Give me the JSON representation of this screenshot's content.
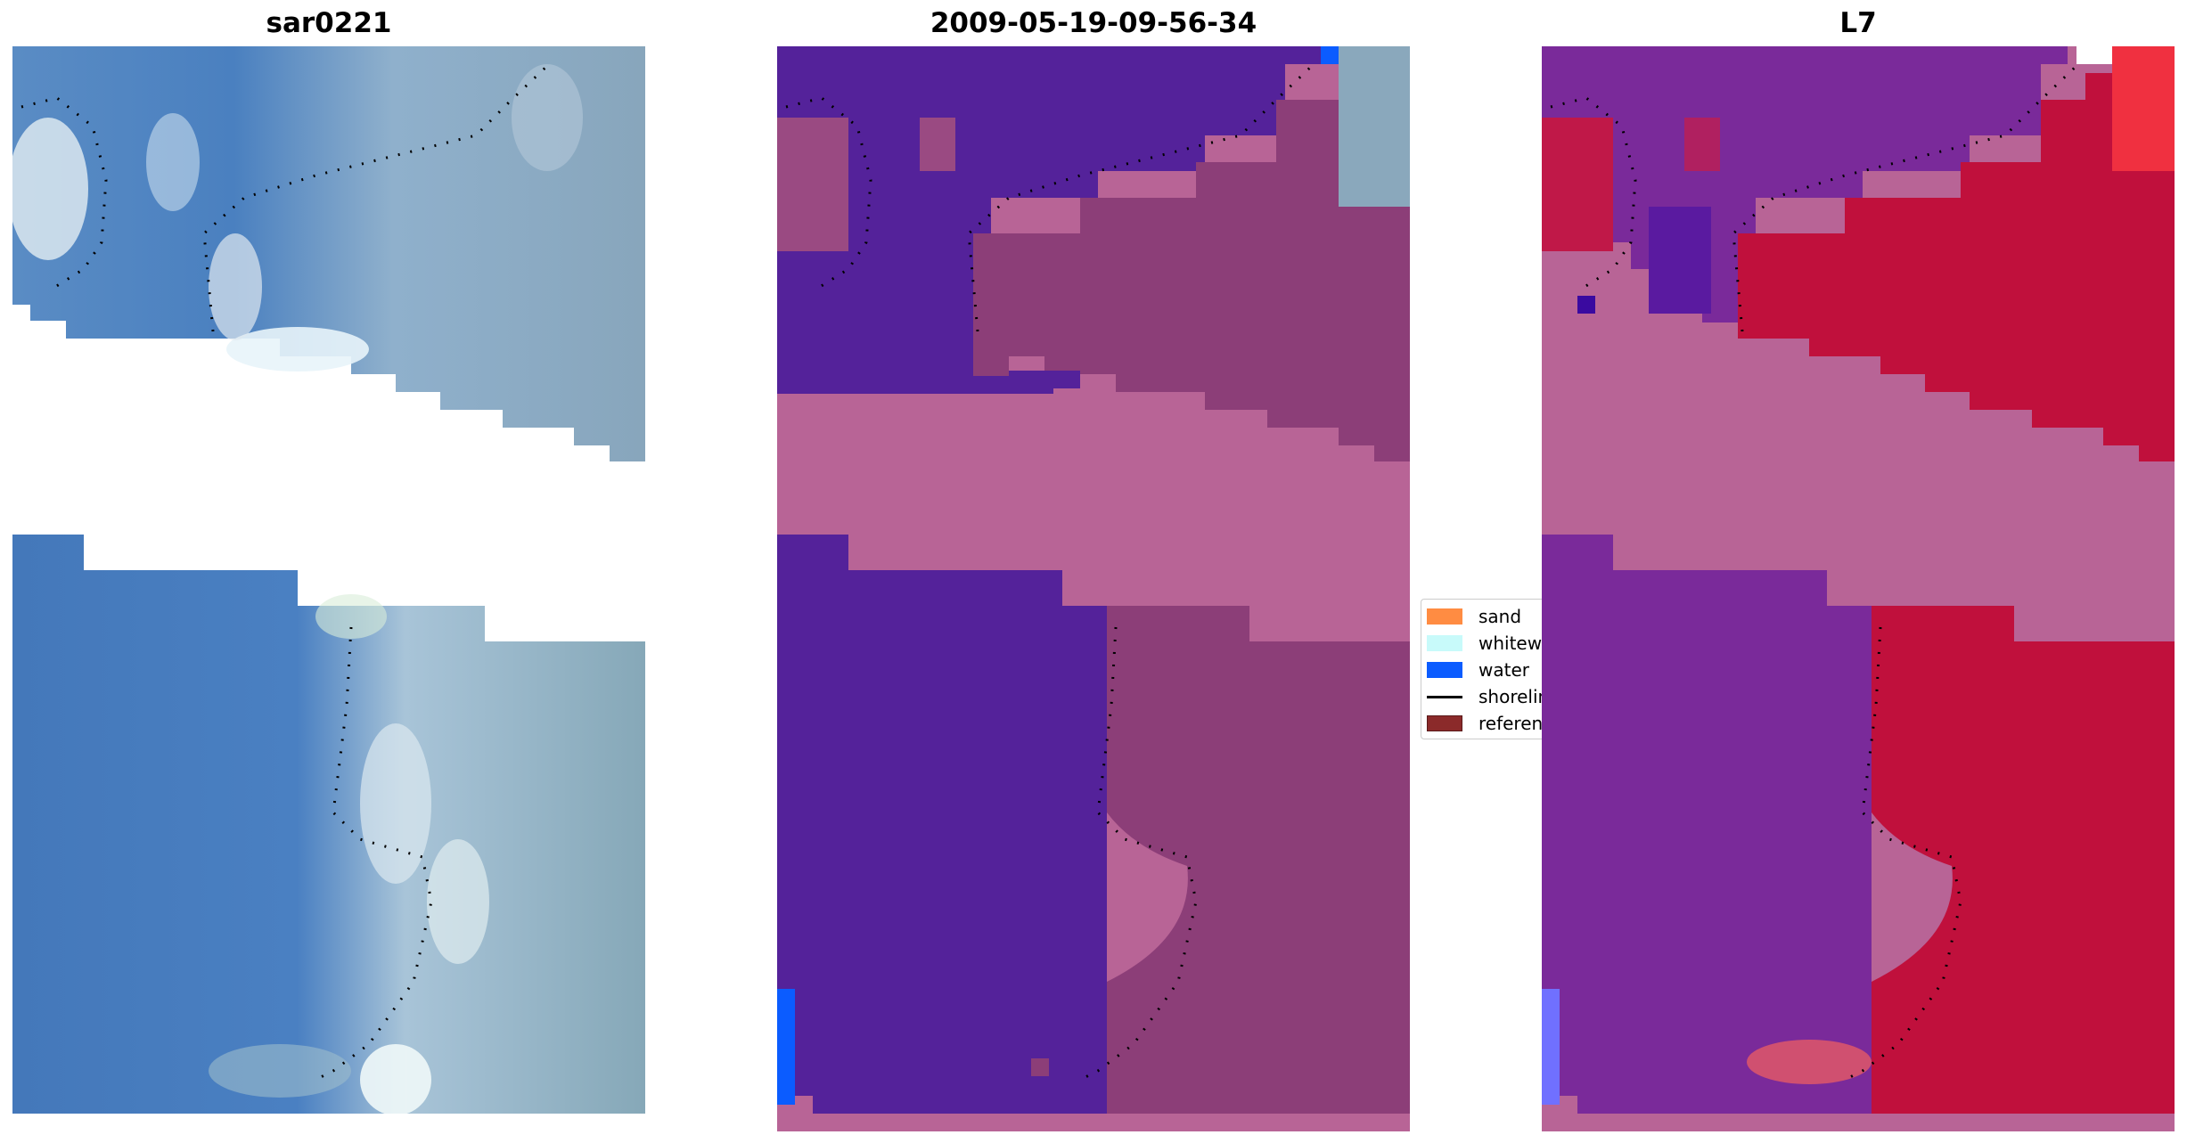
{
  "panels": [
    {
      "title": "sar0221"
    },
    {
      "title": "2009-05-19-09-56-34"
    },
    {
      "title": "L7"
    }
  ],
  "legend": {
    "items": [
      {
        "label": "sand",
        "color": "#ff8c42",
        "kind": "patch"
      },
      {
        "label": "whitewater",
        "color": "#c8fafa",
        "kind": "patch"
      },
      {
        "label": "water",
        "color": "#0b5cff",
        "kind": "patch"
      },
      {
        "label": "shoreline",
        "color": "#000000",
        "kind": "line"
      },
      {
        "label": "reference shoreline",
        "color": "#8b2a2a",
        "kind": "patch"
      }
    ]
  },
  "colors": {
    "rgb_water": "#4a80c0",
    "rgb_land": "#8aa8c0",
    "rgb_white": "#e8f0f5",
    "class_water": "#54229a",
    "class_land": "#8c3e78",
    "class_nodata": "#b86496",
    "mndwi_water": "#7a2a9a",
    "mndwi_land": "#c0103c",
    "mndwi_nodata": "#b86496"
  }
}
